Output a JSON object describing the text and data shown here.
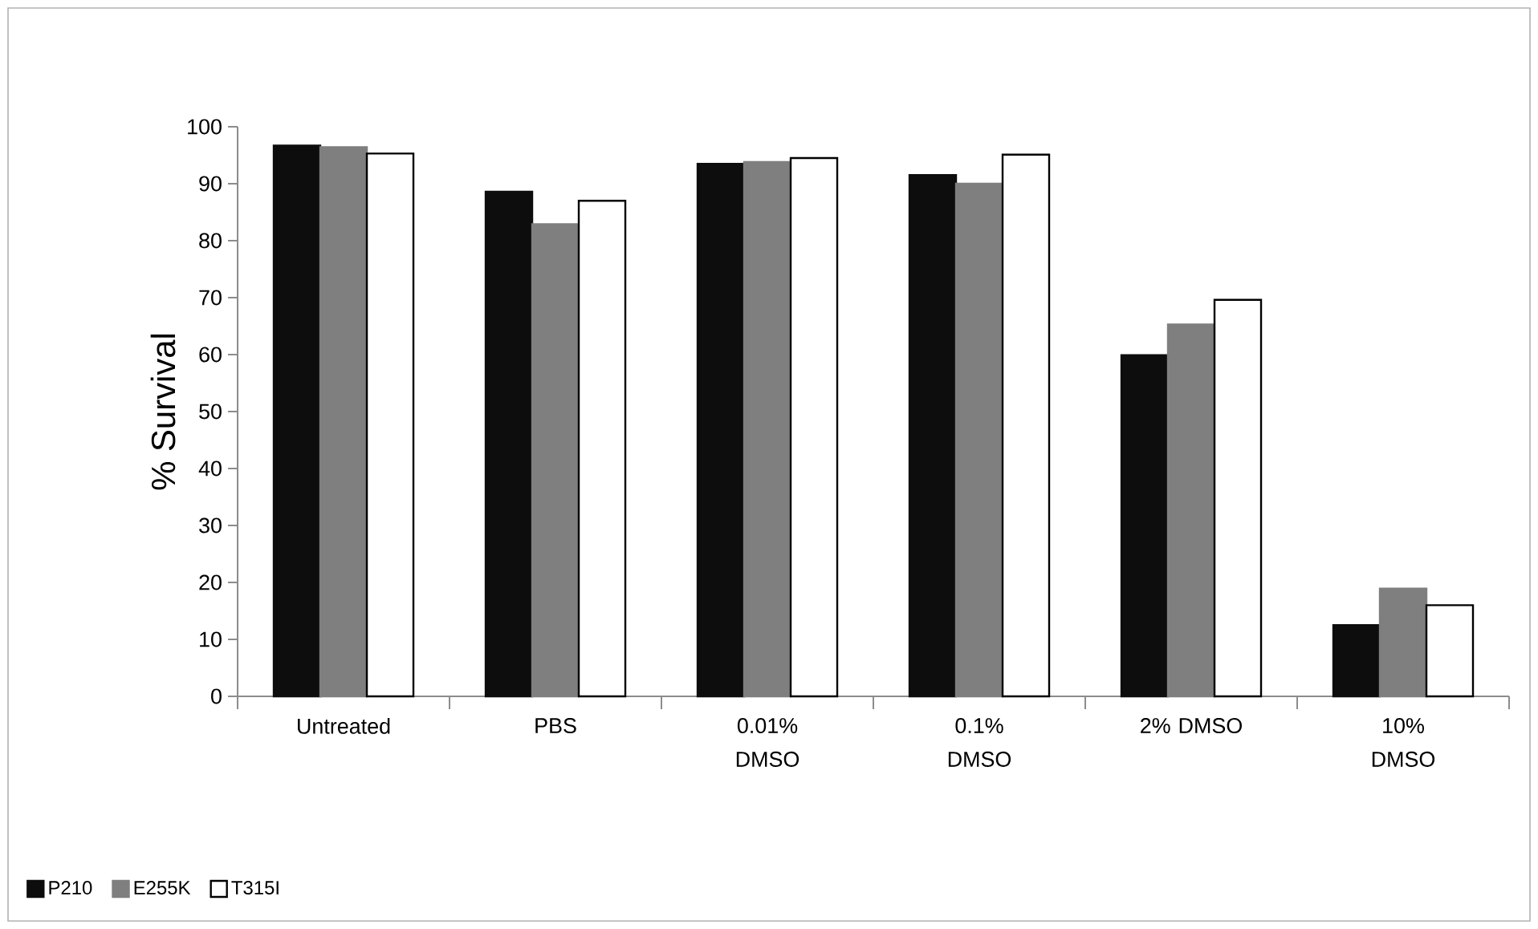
{
  "chart_data": {
    "type": "bar",
    "ylabel": "% Survival",
    "categories": [
      "Untreated",
      "PBS",
      "0.01% DMSO",
      "0.1% DMSO",
      "2% DMSO",
      "10% DMSO"
    ],
    "series": [
      {
        "name": "P210",
        "color": "#0d0d0d",
        "values": [
          96.7,
          88.6,
          93.5,
          91.5,
          59.9,
          12.5
        ]
      },
      {
        "name": "E255K",
        "color": "#7f7f7f",
        "values": [
          96.4,
          82.9,
          93.8,
          90.0,
          65.3,
          18.9
        ]
      },
      {
        "name": "T315I",
        "color": "#ffffff",
        "values": [
          95.3,
          87.0,
          94.5,
          95.1,
          69.6,
          16.0
        ]
      }
    ],
    "ylim": [
      0,
      100
    ],
    "yticks": [
      0,
      10,
      20,
      30,
      40,
      50,
      60,
      70,
      80,
      90,
      100
    ],
    "grid": false,
    "legend": "bottom left"
  }
}
